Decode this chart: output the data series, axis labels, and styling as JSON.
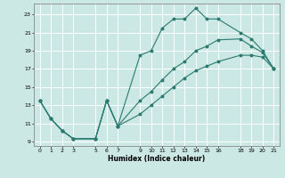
{
  "xlabel": "Humidex (Indice chaleur)",
  "bg_color": "#cce8e4",
  "line_color": "#2a7a6f",
  "grid_color": "#ffffff",
  "xlim": [
    -0.5,
    21.5
  ],
  "ylim": [
    8.5,
    24.2
  ],
  "xticks": [
    0,
    1,
    2,
    3,
    5,
    6,
    7,
    9,
    10,
    11,
    12,
    13,
    14,
    15,
    16,
    18,
    19,
    20,
    21
  ],
  "yticks": [
    9,
    11,
    13,
    15,
    17,
    19,
    21,
    23
  ],
  "line1_x": [
    0,
    1,
    2,
    3,
    5,
    6,
    7,
    9,
    10,
    11,
    12,
    13,
    14,
    15,
    16,
    18,
    19,
    20,
    21
  ],
  "line1_y": [
    13.5,
    11.5,
    10.2,
    9.3,
    9.3,
    13.5,
    10.7,
    18.5,
    19.0,
    21.5,
    22.5,
    22.5,
    23.7,
    22.5,
    22.5,
    21.0,
    20.3,
    19.0,
    17.0
  ],
  "line2_x": [
    0,
    1,
    2,
    3,
    5,
    6,
    7,
    9,
    10,
    11,
    12,
    13,
    14,
    15,
    16,
    18,
    19,
    20,
    21
  ],
  "line2_y": [
    13.5,
    11.5,
    10.2,
    9.3,
    9.3,
    13.5,
    10.7,
    13.5,
    14.5,
    15.8,
    17.0,
    17.8,
    19.0,
    19.5,
    20.2,
    20.3,
    19.5,
    18.8,
    17.0
  ],
  "line3_x": [
    0,
    1,
    2,
    3,
    5,
    6,
    7,
    9,
    10,
    11,
    12,
    13,
    14,
    15,
    16,
    18,
    19,
    20,
    21
  ],
  "line3_y": [
    13.5,
    11.5,
    10.2,
    9.3,
    9.3,
    13.5,
    10.7,
    12.0,
    13.0,
    14.0,
    15.0,
    16.0,
    16.8,
    17.3,
    17.8,
    18.5,
    18.5,
    18.3,
    17.0
  ]
}
